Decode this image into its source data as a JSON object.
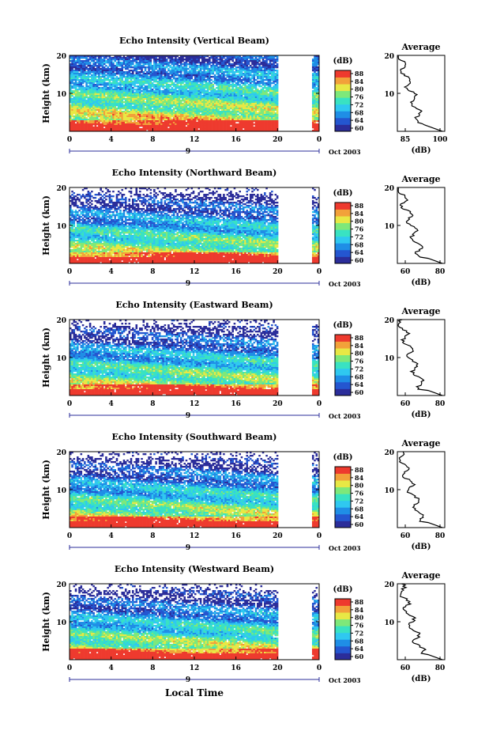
{
  "figure": {
    "bottom_label": "Local Time"
  },
  "panels": [
    {
      "title": "Echo Intensity (Vertical Beam)",
      "avg_ticks": [
        "85",
        "100"
      ]
    },
    {
      "title": "Echo Intensity (Northward Beam)",
      "avg_ticks": [
        "60",
        "80"
      ]
    },
    {
      "title": "Echo Intensity (Eastward Beam)",
      "avg_ticks": [
        "60",
        "80"
      ]
    },
    {
      "title": "Echo Intensity (Southward Beam)",
      "avg_ticks": [
        "60",
        "80"
      ]
    },
    {
      "title": "Echo Intensity (Westward Beam)",
      "avg_ticks": [
        "60",
        "80"
      ]
    }
  ],
  "chart_data": {
    "type": "heatmap",
    "ylabel": "Height (km)",
    "y_ticks": [
      "10",
      "20"
    ],
    "ylim": [
      0,
      20
    ],
    "x_ticks": [
      "0",
      "4",
      "8",
      "12",
      "16",
      "20",
      "0"
    ],
    "date_marker": "9",
    "date_label": "Oct 2003",
    "colorbar": {
      "label": "(dB)",
      "ticks": [
        "88",
        "84",
        "80",
        "76",
        "72",
        "68",
        "64",
        "60"
      ],
      "range": [
        60,
        90
      ]
    },
    "average": {
      "title": "Average",
      "xlabel": "(dB)",
      "y_ticks": [
        "10",
        "20"
      ]
    },
    "colors": {
      "scale": [
        "#2b2d9a",
        "#2456d0",
        "#1f8ee6",
        "#2fc8f0",
        "#39e2c2",
        "#7ee87a",
        "#e8e845",
        "#f2a13a",
        "#ee3a2e"
      ]
    }
  }
}
